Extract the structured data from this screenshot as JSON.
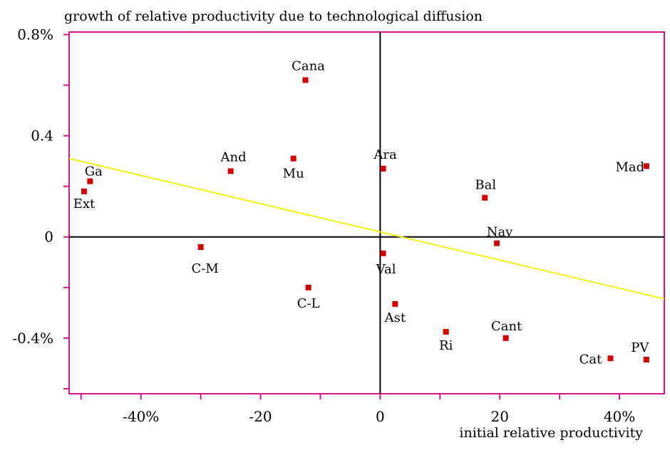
{
  "chart_data": {
    "type": "scatter",
    "title": "growth of relative productivity due to technological diffusion",
    "xlabel": "initial relative productivity",
    "ylabel": "",
    "xlim": [
      -52,
      47.5
    ],
    "ylim": [
      -0.62,
      0.81
    ],
    "grid": false,
    "legend": "none",
    "x_ticks": [
      {
        "value": -40,
        "label": "-40%"
      },
      {
        "value": -20,
        "label": "-20"
      },
      {
        "value": 0,
        "label": "0"
      },
      {
        "value": 20,
        "label": "20"
      },
      {
        "value": 40,
        "label": "40%"
      }
    ],
    "y_ticks": [
      {
        "value": 0.8,
        "label": "0.8%"
      },
      {
        "value": 0.4,
        "label": "0.4"
      },
      {
        "value": 0,
        "label": "0"
      },
      {
        "value": -0.4,
        "label": "-0.4%"
      }
    ],
    "points": [
      {
        "label": "Cana",
        "x": -12.5,
        "y": 0.62
      },
      {
        "label": "And",
        "x": -25,
        "y": 0.26
      },
      {
        "label": "Mu",
        "x": -14.5,
        "y": 0.31
      },
      {
        "label": "Ga",
        "x": -48.5,
        "y": 0.22
      },
      {
        "label": "Ext",
        "x": -49.5,
        "y": 0.18
      },
      {
        "label": "Ara",
        "x": 0.5,
        "y": 0.27
      },
      {
        "label": "Mad",
        "x": 44.5,
        "y": 0.28
      },
      {
        "label": "Bal",
        "x": 17.5,
        "y": 0.155
      },
      {
        "label": "Nav",
        "x": 19.5,
        "y": -0.025
      },
      {
        "label": "C-M",
        "x": -30,
        "y": -0.04
      },
      {
        "label": "Val",
        "x": 0.5,
        "y": -0.065
      },
      {
        "label": "C-L",
        "x": -12,
        "y": -0.2
      },
      {
        "label": "Ast",
        "x": 2.5,
        "y": -0.265
      },
      {
        "label": "Ri",
        "x": 11,
        "y": -0.375
      },
      {
        "label": "Cant",
        "x": 21,
        "y": -0.4
      },
      {
        "label": "Cat",
        "x": 38.5,
        "y": -0.48
      },
      {
        "label": "PV",
        "x": 44.5,
        "y": -0.485
      }
    ],
    "trend_line": {
      "x": [
        -52,
        47.5
      ],
      "y": [
        0.31,
        -0.245
      ]
    },
    "colors": {
      "frame": "#d4148e",
      "axis": "#000000",
      "marker": "#d00000",
      "trend": "#f2f21a"
    }
  }
}
